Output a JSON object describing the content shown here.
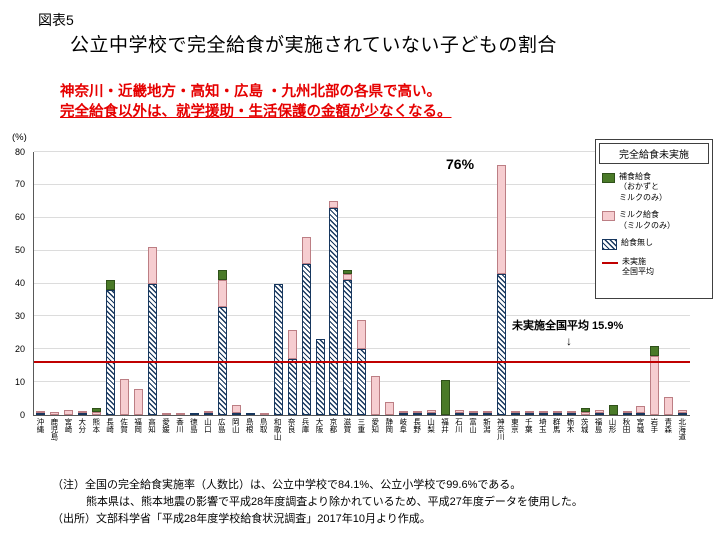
{
  "page": {
    "figure_label": "図表5",
    "title": "公立中学校で完全給食が実施されていない子どもの割合",
    "highlight_line1": "神奈川・近畿地方・高知・広島 ・九州北部の各県で高い。",
    "highlight_line2": "完全給食以外は、就学援助・生活保護の金額が少なくなる。"
  },
  "chart_data": {
    "type": "bar",
    "stacked": true,
    "title": "公立中学校で完全給食が実施されていない子どもの割合",
    "ylabel": "(%)",
    "ylim": [
      0,
      80
    ],
    "yticks": [
      0,
      10,
      20,
      30,
      40,
      50,
      60,
      70,
      80
    ],
    "grid": true,
    "categories": [
      "沖縄",
      "鹿児島",
      "宮崎",
      "大分",
      "熊本",
      "長崎",
      "佐賀",
      "福岡",
      "高知",
      "愛媛",
      "香川",
      "徳島",
      "山口",
      "広島",
      "岡山",
      "島根",
      "鳥取",
      "和歌山",
      "奈良",
      "兵庫",
      "大阪",
      "京都",
      "滋賀",
      "三重",
      "愛知",
      "静岡",
      "岐阜",
      "長野",
      "山梨",
      "福井",
      "石川",
      "富山",
      "新潟",
      "神奈川",
      "東京",
      "千葉",
      "埼玉",
      "群馬",
      "栃木",
      "茨城",
      "福島",
      "山形",
      "秋田",
      "宮城",
      "岩手",
      "青森",
      "北海道"
    ],
    "series": [
      {
        "name": "給食無し",
        "style": "hatched",
        "values": [
          0.5,
          0,
          0,
          0.5,
          0,
          38,
          0,
          0,
          40,
          0,
          0,
          0.5,
          0.5,
          33,
          0.5,
          0.5,
          0,
          40,
          17,
          46,
          23,
          63,
          41,
          20,
          0,
          0,
          0.5,
          0.5,
          0.5,
          0,
          0.5,
          0.5,
          0.5,
          43,
          0.5,
          0.5,
          0.5,
          0.5,
          0.5,
          0,
          0.5,
          0,
          0.5,
          0.5,
          0,
          0,
          0.5
        ]
      },
      {
        "name": "ミルク給食（ミルクのみ）",
        "style": "pink",
        "values": [
          0.5,
          1,
          1.5,
          0.5,
          1,
          0,
          11,
          8,
          11,
          0.5,
          0.5,
          0,
          0.5,
          8,
          2.5,
          0,
          0.5,
          0,
          9,
          8,
          0,
          2,
          2,
          9,
          12,
          4,
          0.5,
          0.5,
          1,
          0,
          1,
          0.5,
          0.5,
          33,
          0.5,
          0.5,
          0.5,
          0.5,
          0.5,
          1,
          1,
          0,
          0.5,
          2,
          18,
          5.5,
          1
        ]
      },
      {
        "name": "補食給食（おかずとミルクのみ）",
        "style": "green",
        "values": [
          0,
          0,
          0,
          0,
          1,
          3,
          0,
          0,
          0,
          0,
          0,
          0,
          0,
          3,
          0,
          0,
          0,
          0,
          0,
          0,
          0,
          0,
          1,
          0,
          0,
          0,
          0,
          0,
          0,
          10.5,
          0,
          0,
          0,
          0,
          0,
          0,
          0,
          0,
          0,
          1,
          0,
          3,
          0,
          0,
          3,
          0,
          0
        ]
      }
    ],
    "average_line": {
      "label": "未実施全国平均",
      "value": 15.9
    },
    "annotations": {
      "peak_label": "76%",
      "peak_category": "神奈川",
      "average_label": "未実施全国平均 15.9%",
      "arrow": "↓"
    },
    "legend": {
      "title": "完全給食未実施",
      "position": "top-right",
      "items": [
        {
          "label": "補食給食\n（おかずと\nミルクのみ）",
          "swatch": "green"
        },
        {
          "label": "ミルク給食\n（ミルクのみ）",
          "swatch": "pink"
        },
        {
          "label": "給食無し",
          "swatch": "hatched"
        },
        {
          "label": "未実施\n全国平均",
          "swatch": "red-line"
        }
      ]
    },
    "colors": {
      "green": "#4a7a28",
      "green_border": "#2f511a",
      "pink": "#f6cdd0",
      "pink_border": "#bc7e84",
      "hatch": "#17375e",
      "avg": "#c00000",
      "hl": "#e60000"
    }
  },
  "notes": {
    "note1": "（注）全国の完全給食実施率（人数比）は、公立中学校で84.1%、公立小学校で99.6%である。",
    "note2": "熊本県は、熊本地震の影響で平成28年度調査より除かれているため、平成27年度データを使用した。",
    "source": "（出所）文部科学省「平成28年度学校給食状況調査」2017年10月より作成。"
  }
}
